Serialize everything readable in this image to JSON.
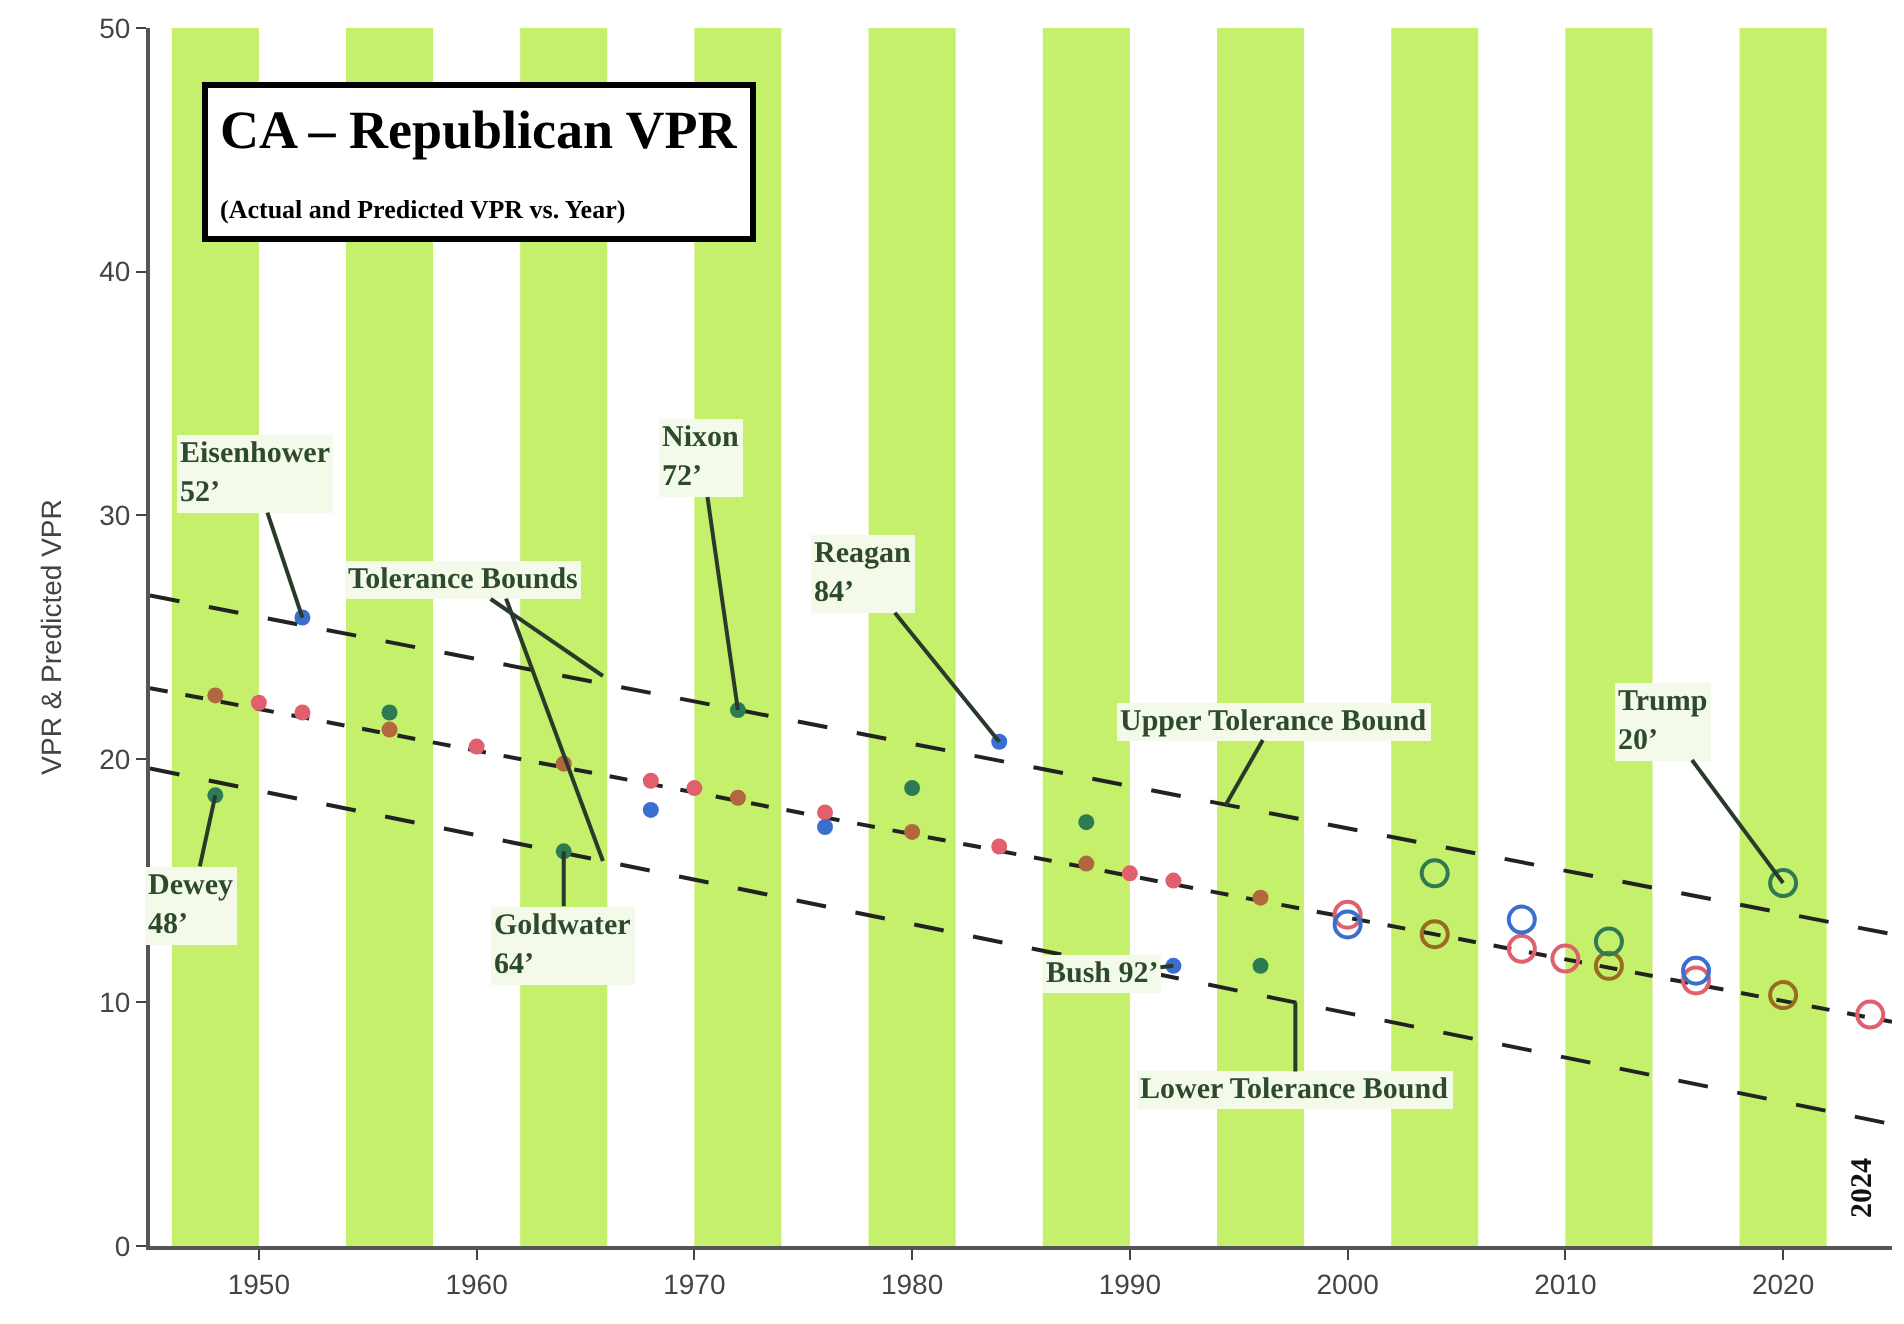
{
  "chart_data": {
    "type": "scatter",
    "title": "CA – Republican VPR",
    "subtitle": "(Actual and Predicted VPR vs. Year)",
    "ylabel": "VPR & Predicted VPR",
    "xlim": [
      1945,
      2025
    ],
    "xticks": [
      1950,
      1960,
      1970,
      1980,
      1990,
      2000,
      2010,
      2020
    ],
    "ylim": [
      0,
      50
    ],
    "yticks": [
      0,
      10,
      20,
      30,
      40,
      50
    ],
    "grid": false,
    "bands": [
      {
        "axis": "x",
        "from": 1946,
        "to": 1950,
        "color": "#c4f06c"
      },
      {
        "axis": "x",
        "from": 1954,
        "to": 1958,
        "color": "#c4f06c"
      },
      {
        "axis": "x",
        "from": 1962,
        "to": 1966,
        "color": "#c4f06c"
      },
      {
        "axis": "x",
        "from": 1970,
        "to": 1974,
        "color": "#c4f06c"
      },
      {
        "axis": "x",
        "from": 1978,
        "to": 1982,
        "color": "#c4f06c"
      },
      {
        "axis": "x",
        "from": 1986,
        "to": 1990,
        "color": "#c4f06c"
      },
      {
        "axis": "x",
        "from": 1994,
        "to": 1998,
        "color": "#c4f06c"
      },
      {
        "axis": "x",
        "from": 2002,
        "to": 2006,
        "color": "#c4f06c"
      },
      {
        "axis": "x",
        "from": 2010,
        "to": 2014,
        "color": "#c4f06c"
      },
      {
        "axis": "x",
        "from": 2018,
        "to": 2022,
        "color": "#c4f06c"
      }
    ],
    "series": [
      {
        "type": "line",
        "line_style": "dashed",
        "marker": "none",
        "color": "#222222",
        "x": [
          1945,
          2025
        ],
        "values": [
          26.7,
          12.8
        ]
      },
      {
        "type": "line",
        "line_style": "dashed",
        "marker": "none",
        "color": "#222222",
        "x": [
          1945,
          2025
        ],
        "values": [
          19.6,
          5.0
        ]
      },
      {
        "type": "line",
        "line_style": "dotted",
        "marker": "none",
        "color": "#222222",
        "x": [
          1945,
          2025
        ],
        "values": [
          22.9,
          9.2
        ]
      },
      {
        "marker": "circle",
        "x": [
          1948,
          1950,
          1952,
          1956,
          1960,
          1964,
          1968,
          1970,
          1972,
          1976,
          1980,
          1984,
          1988,
          1990,
          1992,
          1996
        ],
        "values": [
          22.6,
          22.3,
          21.9,
          21.2,
          20.5,
          19.8,
          19.1,
          18.8,
          18.4,
          17.8,
          17.0,
          16.4,
          15.7,
          15.3,
          15.0,
          14.3
        ],
        "colors": [
          "#b0683c",
          "#e0606e",
          "#e0606e",
          "#b0683c",
          "#e0606e",
          "#b0683c",
          "#e0606e",
          "#e0606e",
          "#b0683c",
          "#e0606e",
          "#b0683c",
          "#e0606e",
          "#b0683c",
          "#e0606e",
          "#e0606e",
          "#b0683c"
        ]
      },
      {
        "marker": "circle-open",
        "x": [
          2000,
          2004,
          2008,
          2010,
          2012,
          2016,
          2020,
          2024
        ],
        "values": [
          13.6,
          12.8,
          12.2,
          11.8,
          11.5,
          10.9,
          10.3,
          9.5
        ],
        "colors": [
          "#e0606e",
          "#9a6a20",
          "#e0606e",
          "#e0606e",
          "#9a6a20",
          "#e0606e",
          "#9a6a20",
          "#e0606e"
        ]
      },
      {
        "marker": "circle",
        "x": [
          1948,
          1952,
          1956,
          1964,
          1968,
          1972,
          1976,
          1980,
          1984,
          1988,
          1992,
          1996
        ],
        "values": [
          18.5,
          25.8,
          21.9,
          16.2,
          17.9,
          22.0,
          17.2,
          18.8,
          20.7,
          17.4,
          11.5,
          11.5
        ],
        "colors": [
          "#2e7a52",
          "#3a6fd0",
          "#2e7a52",
          "#2e7a52",
          "#3a6fd0",
          "#2e7a52",
          "#3a6fd0",
          "#2e7a52",
          "#3a6fd0",
          "#2e7a52",
          "#3a6fd0",
          "#2e7a52"
        ]
      },
      {
        "marker": "circle-open",
        "x": [
          2000,
          2004,
          2008,
          2012,
          2016,
          2020
        ],
        "values": [
          13.2,
          15.3,
          13.4,
          12.5,
          11.3,
          14.9
        ],
        "colors": [
          "#3a6fd0",
          "#2e7a52",
          "#3a6fd0",
          "#2e7a52",
          "#3a6fd0",
          "#2e7a52"
        ]
      }
    ],
    "annotations": [
      {
        "text": "Eisenhower\n52’",
        "x": 1952,
        "y": 25.8
      },
      {
        "text": "Dewey\n48’",
        "x": 1948,
        "y": 18.5
      },
      {
        "text": "Tolerance Bounds",
        "x": 1965.8,
        "y": 23.4
      },
      {
        "text": "Nixon\n72’",
        "x": 1972,
        "y": 22.0
      },
      {
        "text": "Goldwater\n64’",
        "x": 1964,
        "y": 16.2
      },
      {
        "text": "Reagan\n84’",
        "x": 1984,
        "y": 20.7
      },
      {
        "text": "Upper Tolerance Bound",
        "x": 1994.4,
        "y": 18.1
      },
      {
        "text": "Bush 92’",
        "x": 1992,
        "y": 11.5
      },
      {
        "text": "Lower Tolerance Bound",
        "x": 1997.6,
        "y": 10.0
      },
      {
        "text": "Trump\n20’",
        "x": 2020,
        "y": 14.9
      },
      "2024"
    ]
  }
}
